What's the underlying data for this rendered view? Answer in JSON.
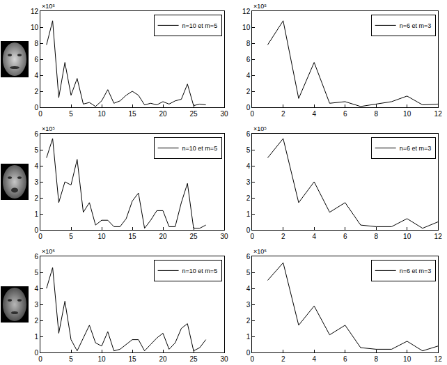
{
  "chart_data": [
    {
      "type": "line",
      "x": [
        1,
        2,
        3,
        4,
        5,
        6,
        7,
        8,
        9,
        10,
        11,
        12,
        13,
        14,
        15,
        16,
        17,
        18,
        19,
        20,
        21,
        22,
        23,
        24,
        25,
        26,
        27
      ],
      "series": [
        {
          "name": "n=10 et m=5",
          "color": "#000000",
          "values": [
            7.8,
            10.8,
            1.2,
            5.6,
            1.5,
            3.6,
            0.4,
            0.6,
            0.1,
            0.8,
            2.2,
            0.5,
            0.8,
            1.5,
            2.0,
            1.5,
            0.3,
            0.5,
            0.3,
            0.7,
            0.4,
            0.8,
            1.0,
            2.9,
            0.2,
            0.4,
            0.3
          ]
        }
      ],
      "xlim": [
        0,
        30
      ],
      "xticks": [
        0,
        5,
        10,
        15,
        20,
        25,
        30
      ],
      "ylim": [
        0,
        12
      ],
      "yticks": [
        0,
        2,
        4,
        6,
        8,
        10,
        12
      ],
      "annotations": [
        "×10⁵"
      ],
      "legend": "upper right",
      "grid": false
    },
    {
      "type": "line",
      "x": [
        1,
        2,
        3,
        4,
        5,
        6,
        7,
        8,
        9,
        10,
        11,
        12
      ],
      "series": [
        {
          "name": "n=6 et m=3",
          "color": "#000000",
          "values": [
            7.8,
            10.8,
            1.1,
            5.6,
            0.5,
            0.7,
            0.1,
            0.4,
            0.7,
            1.4,
            0.3,
            0.4
          ]
        }
      ],
      "xlim": [
        0,
        12
      ],
      "xticks": [
        0,
        2,
        4,
        6,
        8,
        10,
        12
      ],
      "ylim": [
        0,
        12
      ],
      "yticks": [
        0,
        2,
        4,
        6,
        8,
        10,
        12
      ],
      "annotations": [
        "×10⁵"
      ],
      "legend": "upper right",
      "grid": false
    },
    {
      "type": "line",
      "x": [
        1,
        2,
        3,
        4,
        5,
        6,
        7,
        8,
        9,
        10,
        11,
        12,
        13,
        14,
        15,
        16,
        17,
        18,
        19,
        20,
        21,
        22,
        23,
        24,
        25,
        26,
        27
      ],
      "series": [
        {
          "name": "n=10 et m=5",
          "color": "#000000",
          "values": [
            4.5,
            5.7,
            1.7,
            3.0,
            2.8,
            4.4,
            1.1,
            1.7,
            0.3,
            0.6,
            0.6,
            0.2,
            0.2,
            0.7,
            1.8,
            2.3,
            0.1,
            0.6,
            1.2,
            1.2,
            0.2,
            0.2,
            1.7,
            2.9,
            0.1,
            0.1,
            0.3
          ]
        }
      ],
      "xlim": [
        0,
        30
      ],
      "xticks": [
        0,
        5,
        10,
        15,
        20,
        25,
        30
      ],
      "ylim": [
        0,
        6
      ],
      "yticks": [
        0,
        1,
        2,
        3,
        4,
        5,
        6
      ],
      "annotations": [
        "×10⁵"
      ],
      "legend": "upper right",
      "grid": false
    },
    {
      "type": "line",
      "x": [
        1,
        2,
        3,
        4,
        5,
        6,
        7,
        8,
        9,
        10,
        11,
        12
      ],
      "series": [
        {
          "name": "n=6 et m=3",
          "color": "#000000",
          "values": [
            4.5,
            5.7,
            1.7,
            3.0,
            1.1,
            1.7,
            0.3,
            0.2,
            0.2,
            0.7,
            0.1,
            0.5
          ]
        }
      ],
      "xlim": [
        0,
        12
      ],
      "xticks": [
        0,
        2,
        4,
        6,
        8,
        10,
        12
      ],
      "ylim": [
        0,
        6
      ],
      "yticks": [
        0,
        1,
        2,
        3,
        4,
        5,
        6
      ],
      "annotations": [
        "×10⁵"
      ],
      "legend": "upper right",
      "grid": false
    },
    {
      "type": "line",
      "x": [
        1,
        2,
        3,
        4,
        5,
        6,
        7,
        8,
        9,
        10,
        11,
        12,
        13,
        14,
        15,
        16,
        17,
        18,
        19,
        20,
        21,
        22,
        23,
        24,
        25,
        26,
        27
      ],
      "series": [
        {
          "name": "n=10 et m=5",
          "color": "#000000",
          "values": [
            4.0,
            5.3,
            1.2,
            3.2,
            0.8,
            0.1,
            0.9,
            1.7,
            0.6,
            0.4,
            1.3,
            0.1,
            0.2,
            0.5,
            0.8,
            0.8,
            0.1,
            0.5,
            0.9,
            1.2,
            0.2,
            0.6,
            1.5,
            1.8,
            0.1,
            0.3,
            0.8
          ]
        }
      ],
      "xlim": [
        0,
        30
      ],
      "xticks": [
        0,
        5,
        10,
        15,
        20,
        25,
        30
      ],
      "ylim": [
        0,
        6
      ],
      "yticks": [
        0,
        1,
        2,
        3,
        4,
        5,
        6
      ],
      "annotations": [
        "×10⁵"
      ],
      "legend": "upper right",
      "grid": false
    },
    {
      "type": "line",
      "x": [
        1,
        2,
        3,
        4,
        5,
        6,
        7,
        8,
        9,
        10,
        11,
        12
      ],
      "series": [
        {
          "name": "n=6 et m=3",
          "color": "#000000",
          "values": [
            4.5,
            5.6,
            1.7,
            2.9,
            1.1,
            1.7,
            0.3,
            0.2,
            0.2,
            0.7,
            0.1,
            0.4
          ]
        }
      ],
      "xlim": [
        0,
        12
      ],
      "xticks": [
        0,
        2,
        4,
        6,
        8,
        10,
        12
      ],
      "ylim": [
        0,
        6
      ],
      "yticks": [
        0,
        1,
        2,
        3,
        4,
        5,
        6
      ],
      "annotations": [
        "×10⁵"
      ],
      "legend": "upper right",
      "grid": false
    }
  ]
}
